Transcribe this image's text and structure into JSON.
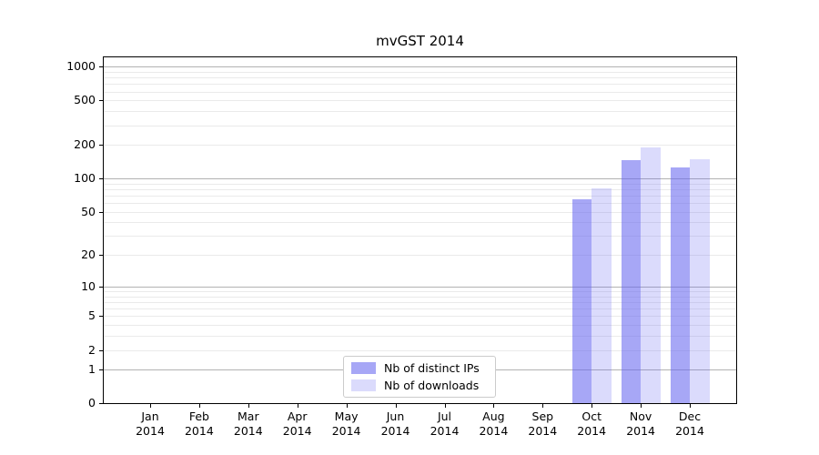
{
  "figure": {
    "title": "mvGST 2014"
  },
  "chart_data": {
    "type": "bar",
    "title": "mvGST 2014",
    "x": {
      "categories": [
        "Jan",
        "Feb",
        "Mar",
        "Apr",
        "May",
        "Jun",
        "Jul",
        "Aug",
        "Sep",
        "Oct",
        "Nov",
        "Dec"
      ],
      "year": "2014"
    },
    "series": [
      {
        "name": "Nb of distinct IPs",
        "color": "rgba(100,100,240,0.57)",
        "values": [
          0,
          0,
          0,
          0,
          0,
          0,
          0,
          0,
          0,
          65,
          145,
          125
        ]
      },
      {
        "name": "Nb of downloads",
        "color": "rgba(100,100,240,0.23)",
        "values": [
          0,
          0,
          0,
          0,
          0,
          0,
          0,
          0,
          0,
          82,
          190,
          150
        ]
      }
    ],
    "yscale": "log10(value+1)",
    "ylim": [
      0,
      1240
    ],
    "y_ticks": [
      0,
      1,
      2,
      5,
      10,
      20,
      50,
      100,
      200,
      500,
      1000
    ],
    "y_gridlines_major": [
      1,
      10,
      100,
      1000
    ],
    "y_gridlines_minor": [
      2,
      3,
      4,
      5,
      6,
      7,
      8,
      9,
      20,
      30,
      40,
      50,
      60,
      70,
      80,
      90,
      200,
      300,
      400,
      500,
      600,
      700,
      800,
      900
    ],
    "grid": true,
    "legend": {
      "position": "lower center"
    },
    "colors": {
      "grid_major": "#b2b2b2",
      "grid_minor": "#eaeaea",
      "spine": "#000000"
    }
  }
}
